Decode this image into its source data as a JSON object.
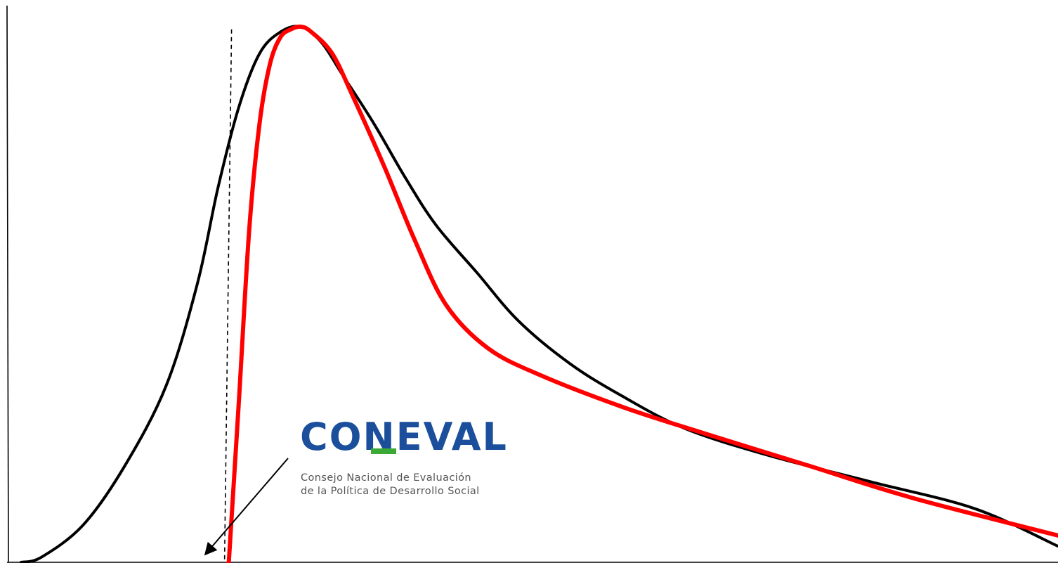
{
  "chart_data": {
    "type": "line",
    "title": "",
    "xlabel": "",
    "ylabel": "",
    "grid": false,
    "legend": "none",
    "series": [
      {
        "color": "#000000",
        "points": [
          [
            0,
            0
          ],
          [
            2,
            0.01
          ],
          [
            6,
            0.07
          ],
          [
            10,
            0.18
          ],
          [
            14,
            0.33
          ],
          [
            17,
            0.52
          ],
          [
            19,
            0.7
          ],
          [
            21,
            0.85
          ],
          [
            23,
            0.95
          ],
          [
            25,
            0.99
          ],
          [
            27,
            1.0
          ],
          [
            29,
            0.97
          ],
          [
            31,
            0.91
          ],
          [
            34,
            0.82
          ],
          [
            37,
            0.72
          ],
          [
            40,
            0.63
          ],
          [
            44,
            0.54
          ],
          [
            48,
            0.45
          ],
          [
            53,
            0.37
          ],
          [
            58,
            0.31
          ],
          [
            64,
            0.25
          ],
          [
            72,
            0.2
          ],
          [
            82,
            0.15
          ],
          [
            92,
            0.1
          ],
          [
            100,
            0.03
          ]
        ]
      },
      {
        "color": "#ff0000",
        "points": [
          [
            20,
            -0.01
          ],
          [
            21,
            0.3
          ],
          [
            22,
            0.62
          ],
          [
            23,
            0.82
          ],
          [
            24,
            0.93
          ],
          [
            25,
            0.98
          ],
          [
            26,
            0.995
          ],
          [
            27,
            1.0
          ],
          [
            28,
            0.99
          ],
          [
            30,
            0.95
          ],
          [
            32,
            0.87
          ],
          [
            35,
            0.74
          ],
          [
            38,
            0.6
          ],
          [
            41,
            0.48
          ],
          [
            45,
            0.4
          ],
          [
            50,
            0.35
          ],
          [
            58,
            0.29
          ],
          [
            66,
            0.24
          ],
          [
            76,
            0.18
          ],
          [
            86,
            0.12
          ],
          [
            100,
            0.05
          ]
        ]
      }
    ],
    "reference_line_x": 20.3,
    "xlim": [
      0,
      100
    ],
    "ylim": [
      0,
      1
    ]
  },
  "logo": {
    "wordmark": "CONEVAL",
    "wordmark_color": "#1b4f9c",
    "accent_color": "#3aa935",
    "subtitle_line1": "Consejo Nacional de Evaluación",
    "subtitle_line2": "de la Política de Desarrollo Social"
  }
}
